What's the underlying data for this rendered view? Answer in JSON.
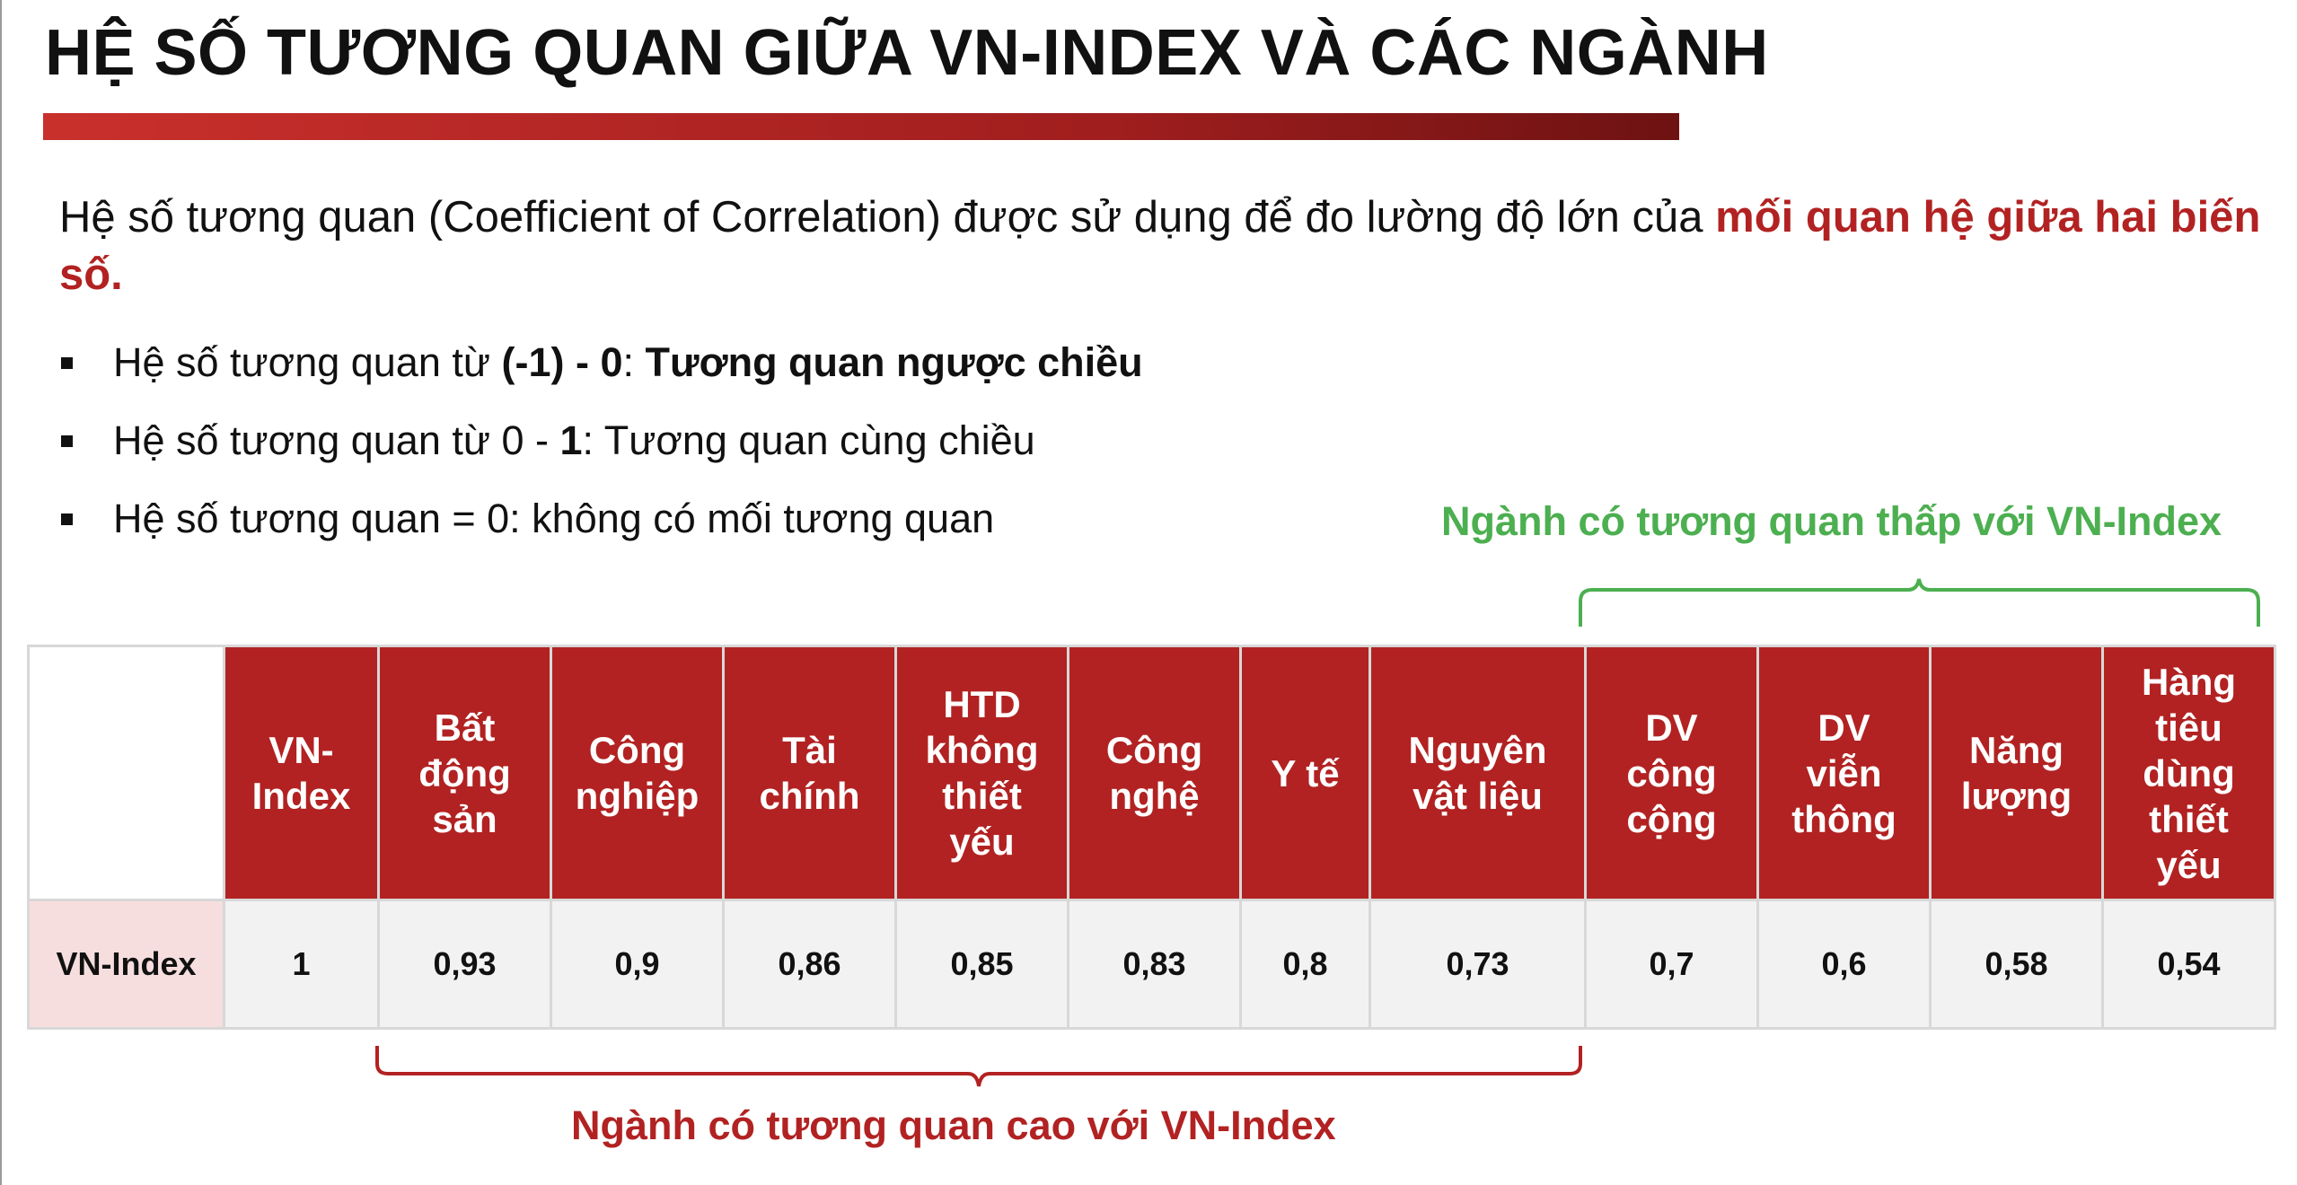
{
  "title": "HỆ SỐ TƯƠNG QUAN GIỮA VN-INDEX VÀ CÁC NGÀNH",
  "intro": {
    "text": "Hệ số tương quan (Coefficient of Correlation) được sử dụng để đo lường độ lớn của ",
    "highlight": "mối quan hệ giữa hai biến số."
  },
  "bullets": [
    {
      "pre": "Hệ số tương quan từ ",
      "b1": "(-1) - 0",
      "mid": ": ",
      "b2": "Tương quan ngược chiều"
    },
    {
      "pre": "Hệ số tương quan từ 0 - ",
      "b1": "1",
      "mid": ": Tương quan cùng chiều",
      "b2": ""
    },
    {
      "pre": "Hệ số tương quan = 0: không có mối tương quan",
      "b1": "",
      "mid": "",
      "b2": ""
    }
  ],
  "note_low": "Ngành có tương quan thấp với VN-Index",
  "note_high": "Ngành có tương quan cao với VN-Index",
  "table": {
    "row_label": "VN-Index",
    "columns": [
      {
        "name": "VN-\nIndex",
        "value": "1"
      },
      {
        "name": "Bất\nđộng\nsản",
        "value": "0,93"
      },
      {
        "name": "Công\nnghiệp",
        "value": "0,9"
      },
      {
        "name": "Tài\nchính",
        "value": "0,86"
      },
      {
        "name": "HTD\nkhông\nthiết\nyếu",
        "value": "0,85"
      },
      {
        "name": "Công\nnghệ",
        "value": "0,83"
      },
      {
        "name": "Y tế",
        "value": "0,8"
      },
      {
        "name": "Nguyên\nvật liệu",
        "value": "0,73"
      },
      {
        "name": "DV\ncông\ncộng",
        "value": "0,7"
      },
      {
        "name": "DV\nviễn\nthông",
        "value": "0,6"
      },
      {
        "name": "Năng\nlượng",
        "value": "0,58"
      },
      {
        "name": "Hàng\ntiêu\ndùng\nthiết\nyếu",
        "value": "0,54"
      }
    ]
  },
  "colors": {
    "accent_red": "#b22222",
    "accent_green": "#4caf50",
    "row_label_bg": "#f7dede"
  }
}
